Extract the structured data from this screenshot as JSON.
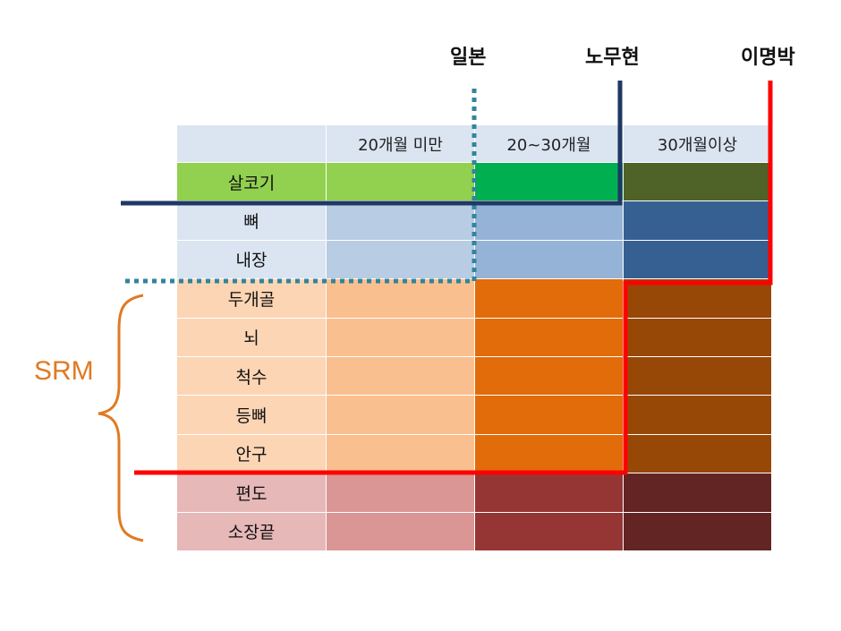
{
  "legend": {
    "japan": "일본",
    "roh": "노무현",
    "lee": "이명박"
  },
  "bracket_label": "SRM",
  "table": {
    "header_corner": "",
    "columns": [
      "20개월 미만",
      "20~30개월",
      "30개월이상"
    ],
    "rows": [
      {
        "label": "살코기",
        "label_color": "#92d050",
        "colors": [
          "#92d050",
          "#00b050",
          "#4f6228"
        ]
      },
      {
        "label": "뼈",
        "label_color": "#dbe5f1",
        "colors": [
          "#b8cce4",
          "#95b3d7",
          "#366092"
        ]
      },
      {
        "label": "내장",
        "label_color": "#dbe5f1",
        "colors": [
          "#b8cce4",
          "#95b3d7",
          "#366092"
        ]
      },
      {
        "label": "두개골",
        "label_color": "#fcd5b4",
        "colors": [
          "#fabf8f",
          "#e26b0a",
          "#974706"
        ]
      },
      {
        "label": "뇌",
        "label_color": "#fcd5b4",
        "colors": [
          "#fabf8f",
          "#e26b0a",
          "#974706"
        ]
      },
      {
        "label": "척수",
        "label_color": "#fcd5b4",
        "colors": [
          "#fabf8f",
          "#e26b0a",
          "#974706"
        ]
      },
      {
        "label": "등뼈",
        "label_color": "#fcd5b4",
        "colors": [
          "#fabf8f",
          "#e26b0a",
          "#974706"
        ]
      },
      {
        "label": "안구",
        "label_color": "#fcd5b4",
        "colors": [
          "#fabf8f",
          "#e26b0a",
          "#974706"
        ]
      },
      {
        "label": "편도",
        "label_color": "#e6b8b7",
        "colors": [
          "#da9694",
          "#963634",
          "#632523"
        ]
      },
      {
        "label": "소장끝",
        "label_color": "#e6b8b7",
        "colors": [
          "#da9694",
          "#963634",
          "#632523"
        ]
      }
    ],
    "header_bg": "#dbe5f1"
  },
  "line_colors": {
    "japan": "#31859c",
    "roh": "#1f3864",
    "lee": "#ff0000",
    "bracket": "#e07a22"
  }
}
